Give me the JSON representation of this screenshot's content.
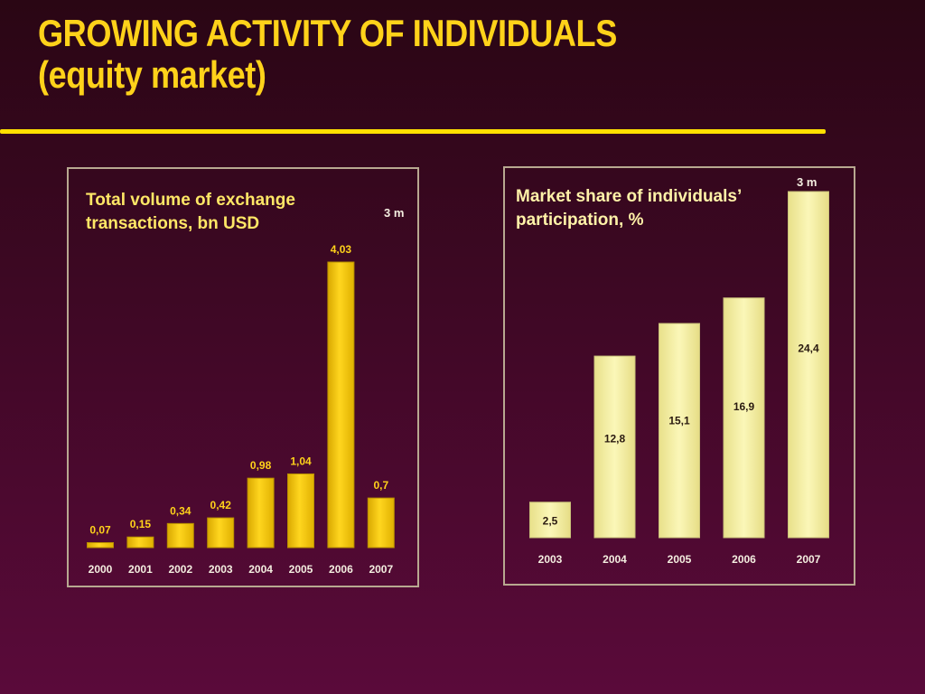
{
  "slide": {
    "title_line1": "GROWING ACTIVITY OF INDIVIDUALS",
    "title_line2": "(equity market)"
  },
  "colors": {
    "title": "#ffd21a",
    "rule": "#ffe000",
    "bar_left": "#f2c400",
    "bar_right": "#f4f0a0",
    "label_left": "#ffd21a",
    "label_right": "#2a1a10",
    "axis_text": "#f4eee0"
  },
  "chart_data": [
    {
      "type": "bar",
      "title": "Total volume of exchange transactions, bn USD",
      "title_lines": [
        "Total volume of exchange",
        "transactions, bn USD"
      ],
      "note": "3 m",
      "categories": [
        "2000",
        "2001",
        "2002",
        "2003",
        "2004",
        "2005",
        "2006",
        "2007"
      ],
      "values": [
        0.07,
        0.15,
        0.34,
        0.42,
        0.98,
        1.04,
        4.03,
        0.7
      ],
      "labels": [
        "0,07",
        "0,15",
        "0,34",
        "0,42",
        "0,98",
        "1,04",
        "4,03",
        "0,7"
      ],
      "ylim": [
        0,
        4.03
      ],
      "xlabel": "",
      "ylabel": ""
    },
    {
      "type": "bar",
      "title": "Market share of individuals’ participation, %",
      "title_lines": [
        "Market share of individuals’",
        "participation,  %"
      ],
      "note": "3 m",
      "categories": [
        "2003",
        "2004",
        "2005",
        "2006",
        "2007"
      ],
      "values": [
        2.5,
        12.8,
        15.1,
        16.9,
        24.4
      ],
      "labels": [
        "2,5",
        "12,8",
        "15,1",
        "16,9",
        "24,4"
      ],
      "ylim": [
        0,
        24.4
      ],
      "xlabel": "",
      "ylabel": ""
    }
  ]
}
